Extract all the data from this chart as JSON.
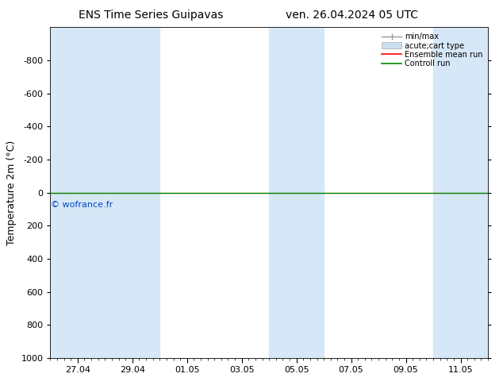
{
  "title_left": "ENS Time Series Guipavas",
  "title_right": "ven. 26.04.2024 05 UTC",
  "ylabel": "Temperature 2m (°C)",
  "ylim": [
    -1000,
    1000
  ],
  "yticks": [
    -800,
    -600,
    -400,
    -200,
    0,
    200,
    400,
    600,
    800,
    1000
  ],
  "x_min": 0,
  "x_max": 16,
  "xtick_labels": [
    "27.04",
    "29.04",
    "01.05",
    "03.05",
    "05.05",
    "07.05",
    "09.05",
    "11.05"
  ],
  "xtick_positions": [
    1,
    3,
    5,
    7,
    9,
    11,
    13,
    15
  ],
  "shaded_bands": [
    [
      0.0,
      2.0
    ],
    [
      2.0,
      4.0
    ],
    [
      8.0,
      10.0
    ],
    [
      14.0,
      16.0
    ]
  ],
  "band_color": "#d6e8f7",
  "ensemble_mean_y": 0,
  "control_run_y": 0,
  "ensemble_mean_color": "#ff0000",
  "control_run_color": "#008800",
  "watermark": "© wofrance.fr",
  "watermark_color": "#0044cc",
  "legend_labels": [
    "min/max",
    "acute;cart type",
    "Ensemble mean run",
    "Controll run"
  ],
  "legend_line_color": "#999999",
  "legend_patch_color": "#c8dff0",
  "legend_patch_edge": "#aaaaaa",
  "legend_mean_color": "#ff0000",
  "legend_ctrl_color": "#008800",
  "background_color": "#ffffff",
  "plot_bg_color": "#ffffff",
  "title_fontsize": 10,
  "axis_label_fontsize": 9,
  "tick_fontsize": 8,
  "legend_fontsize": 7
}
